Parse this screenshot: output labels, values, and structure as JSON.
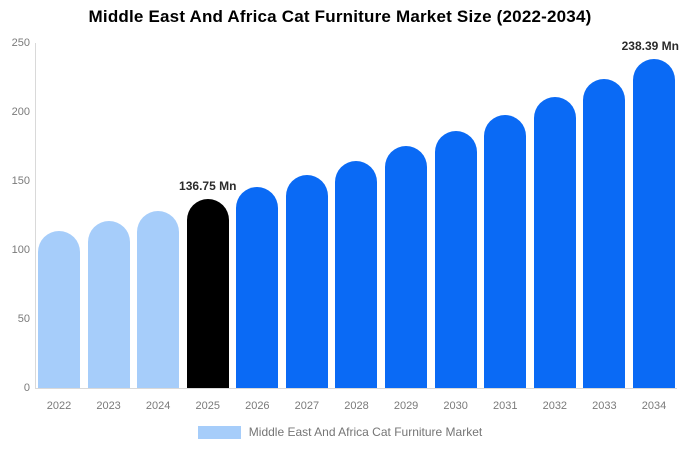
{
  "chart_data": {
    "type": "bar",
    "title": "Middle East And Africa Cat Furniture Market Size (2022-2034)",
    "categories": [
      "2022",
      "2023",
      "2024",
      "2025",
      "2026",
      "2027",
      "2028",
      "2029",
      "2030",
      "2031",
      "2032",
      "2033",
      "2034"
    ],
    "values": [
      113.6,
      120.9,
      128.6,
      136.75,
      145.5,
      154.7,
      164.6,
      175.1,
      186.2,
      198.1,
      210.7,
      224.1,
      238.39
    ],
    "unit": "Mn",
    "bar_colors": [
      "#a6cdfa",
      "#a6cdfa",
      "#a6cdfa",
      "#000000",
      "#0a6af5",
      "#0a6af5",
      "#0a6af5",
      "#0a6af5",
      "#0a6af5",
      "#0a6af5",
      "#0a6af5",
      "#0a6af5",
      "#0a6af5"
    ],
    "colors": {
      "historical": "#a6cdfa",
      "base_year": "#000000",
      "forecast": "#0a6af5",
      "axis_line": "#d9d9d9",
      "tick_text": "#7a7a7a"
    },
    "ylim": [
      0,
      250
    ],
    "yticks": [
      0,
      50,
      100,
      150,
      200,
      250
    ],
    "grid": "off",
    "legend_position": "bottom",
    "annotations": [
      {
        "category": "2025",
        "text": "136.75 Mn"
      },
      {
        "category": "2034",
        "text": "238.39 Mn"
      }
    ],
    "legend": [
      {
        "label": "Middle East And Africa Cat Furniture Market",
        "color": "#a6cdfa"
      }
    ]
  }
}
